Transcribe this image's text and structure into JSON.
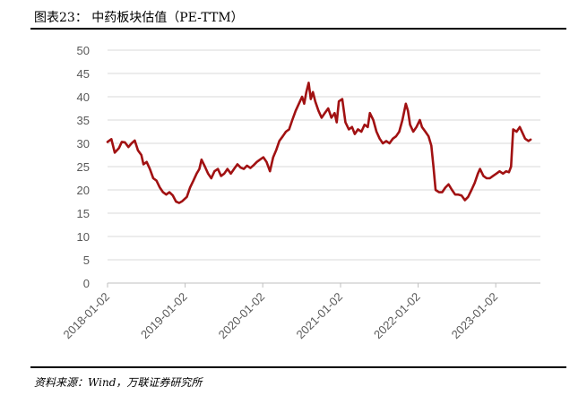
{
  "figure": {
    "title": "图表23：  中药板块估值（PE-TTM）",
    "source": "资料来源：Wind，万联证券研究所"
  },
  "colors": {
    "series": "#a11112",
    "grid": "#d9d9d9",
    "axis": "#bfbfbf"
  },
  "chart_data": {
    "type": "line",
    "title": "",
    "xlabel": "",
    "ylabel": "",
    "ylim": [
      0,
      50
    ],
    "yticks": [
      0,
      5,
      10,
      15,
      20,
      25,
      30,
      35,
      40,
      45,
      50
    ],
    "xticks": [
      "2018-01-02",
      "2019-01-02",
      "2020-01-02",
      "2021-01-02",
      "2022-01-02",
      "2023-01-02"
    ],
    "xlim": [
      "2018-01-02",
      "2023-07-31"
    ],
    "grid": true,
    "legend": "none",
    "series": [
      {
        "values": [
          [
            "2018-01-02",
            30.3
          ],
          [
            "2018-01-20",
            30.9
          ],
          [
            "2018-02-05",
            28.0
          ],
          [
            "2018-02-25",
            29.0
          ],
          [
            "2018-03-10",
            30.3
          ],
          [
            "2018-03-25",
            30.2
          ],
          [
            "2018-04-10",
            29.2
          ],
          [
            "2018-04-25",
            30.0
          ],
          [
            "2018-05-10",
            30.6
          ],
          [
            "2018-05-25",
            28.5
          ],
          [
            "2018-06-10",
            27.5
          ],
          [
            "2018-06-20",
            25.5
          ],
          [
            "2018-07-05",
            26.0
          ],
          [
            "2018-07-20",
            24.5
          ],
          [
            "2018-08-05",
            22.5
          ],
          [
            "2018-08-20",
            22.0
          ],
          [
            "2018-09-05",
            20.5
          ],
          [
            "2018-09-20",
            19.5
          ],
          [
            "2018-10-05",
            19.0
          ],
          [
            "2018-10-20",
            19.5
          ],
          [
            "2018-11-05",
            18.8
          ],
          [
            "2018-11-20",
            17.5
          ],
          [
            "2018-12-05",
            17.2
          ],
          [
            "2018-12-20",
            17.6
          ],
          [
            "2019-01-10",
            18.5
          ],
          [
            "2019-01-25",
            20.5
          ],
          [
            "2019-02-10",
            22.0
          ],
          [
            "2019-02-25",
            23.5
          ],
          [
            "2019-03-10",
            24.5
          ],
          [
            "2019-03-20",
            26.5
          ],
          [
            "2019-04-05",
            25.0
          ],
          [
            "2019-04-20",
            23.5
          ],
          [
            "2019-05-05",
            22.5
          ],
          [
            "2019-05-20",
            24.0
          ],
          [
            "2019-06-05",
            24.5
          ],
          [
            "2019-06-20",
            23.0
          ],
          [
            "2019-07-05",
            23.5
          ],
          [
            "2019-07-20",
            24.5
          ],
          [
            "2019-08-05",
            23.5
          ],
          [
            "2019-08-20",
            24.5
          ],
          [
            "2019-09-05",
            25.5
          ],
          [
            "2019-09-20",
            24.8
          ],
          [
            "2019-10-05",
            24.5
          ],
          [
            "2019-10-20",
            25.2
          ],
          [
            "2019-11-05",
            24.7
          ],
          [
            "2019-11-20",
            25.3
          ],
          [
            "2019-12-05",
            26.0
          ],
          [
            "2019-12-20",
            26.5
          ],
          [
            "2020-01-05",
            27.0
          ],
          [
            "2020-01-20",
            26.0
          ],
          [
            "2020-02-05",
            24.0
          ],
          [
            "2020-02-20",
            27.0
          ],
          [
            "2020-03-05",
            28.5
          ],
          [
            "2020-03-20",
            30.5
          ],
          [
            "2020-04-05",
            31.5
          ],
          [
            "2020-04-20",
            32.5
          ],
          [
            "2020-05-05",
            33.0
          ],
          [
            "2020-05-20",
            35.0
          ],
          [
            "2020-06-05",
            37.0
          ],
          [
            "2020-06-20",
            38.5
          ],
          [
            "2020-07-05",
            40.0
          ],
          [
            "2020-07-15",
            38.5
          ],
          [
            "2020-07-25",
            41.0
          ],
          [
            "2020-08-05",
            43.0
          ],
          [
            "2020-08-15",
            39.5
          ],
          [
            "2020-08-25",
            41.0
          ],
          [
            "2020-09-05",
            39.0
          ],
          [
            "2020-09-20",
            37.0
          ],
          [
            "2020-10-05",
            35.5
          ],
          [
            "2020-10-20",
            36.5
          ],
          [
            "2020-11-05",
            37.5
          ],
          [
            "2020-11-20",
            35.5
          ],
          [
            "2020-12-05",
            36.5
          ],
          [
            "2020-12-15",
            34.5
          ],
          [
            "2020-12-25",
            39.0
          ],
          [
            "2021-01-10",
            39.5
          ],
          [
            "2021-01-25",
            34.5
          ],
          [
            "2021-02-10",
            33.0
          ],
          [
            "2021-02-25",
            33.5
          ],
          [
            "2021-03-10",
            32.0
          ],
          [
            "2021-03-25",
            33.0
          ],
          [
            "2021-04-10",
            32.5
          ],
          [
            "2021-04-25",
            34.0
          ],
          [
            "2021-05-10",
            33.5
          ],
          [
            "2021-05-20",
            36.5
          ],
          [
            "2021-06-05",
            35.0
          ],
          [
            "2021-06-20",
            32.5
          ],
          [
            "2021-07-05",
            31.0
          ],
          [
            "2021-07-20",
            30.0
          ],
          [
            "2021-08-05",
            30.5
          ],
          [
            "2021-08-20",
            30.0
          ],
          [
            "2021-09-05",
            31.0
          ],
          [
            "2021-09-20",
            31.5
          ],
          [
            "2021-10-05",
            32.5
          ],
          [
            "2021-10-20",
            35.0
          ],
          [
            "2021-11-05",
            38.5
          ],
          [
            "2021-11-15",
            37.0
          ],
          [
            "2021-11-25",
            34.0
          ],
          [
            "2021-12-10",
            32.5
          ],
          [
            "2021-12-25",
            33.5
          ],
          [
            "2022-01-10",
            35.0
          ],
          [
            "2022-01-20",
            33.5
          ],
          [
            "2022-02-05",
            32.5
          ],
          [
            "2022-02-20",
            31.5
          ],
          [
            "2022-03-05",
            29.5
          ],
          [
            "2022-03-15",
            25.0
          ],
          [
            "2022-03-25",
            20.0
          ],
          [
            "2022-04-10",
            19.5
          ],
          [
            "2022-04-25",
            19.5
          ],
          [
            "2022-05-10",
            20.5
          ],
          [
            "2022-05-25",
            21.2
          ],
          [
            "2022-06-10",
            20.0
          ],
          [
            "2022-06-25",
            19.0
          ],
          [
            "2022-07-10",
            19.0
          ],
          [
            "2022-07-25",
            18.8
          ],
          [
            "2022-08-10",
            17.8
          ],
          [
            "2022-08-25",
            18.5
          ],
          [
            "2022-09-10",
            20.0
          ],
          [
            "2022-09-25",
            21.5
          ],
          [
            "2022-10-10",
            23.5
          ],
          [
            "2022-10-20",
            24.5
          ],
          [
            "2022-11-05",
            23.0
          ],
          [
            "2022-11-20",
            22.5
          ],
          [
            "2022-12-05",
            22.5
          ],
          [
            "2022-12-20",
            23.0
          ],
          [
            "2023-01-05",
            23.5
          ],
          [
            "2023-01-20",
            24.0
          ],
          [
            "2023-02-05",
            23.5
          ],
          [
            "2023-02-20",
            24.0
          ],
          [
            "2023-03-05",
            23.8
          ],
          [
            "2023-03-15",
            25.0
          ],
          [
            "2023-03-25",
            33.0
          ],
          [
            "2023-04-10",
            32.5
          ],
          [
            "2023-04-25",
            33.5
          ],
          [
            "2023-05-10",
            32.0
          ],
          [
            "2023-05-20",
            31.0
          ],
          [
            "2023-06-05",
            30.5
          ],
          [
            "2023-06-15",
            30.8
          ]
        ]
      }
    ]
  }
}
